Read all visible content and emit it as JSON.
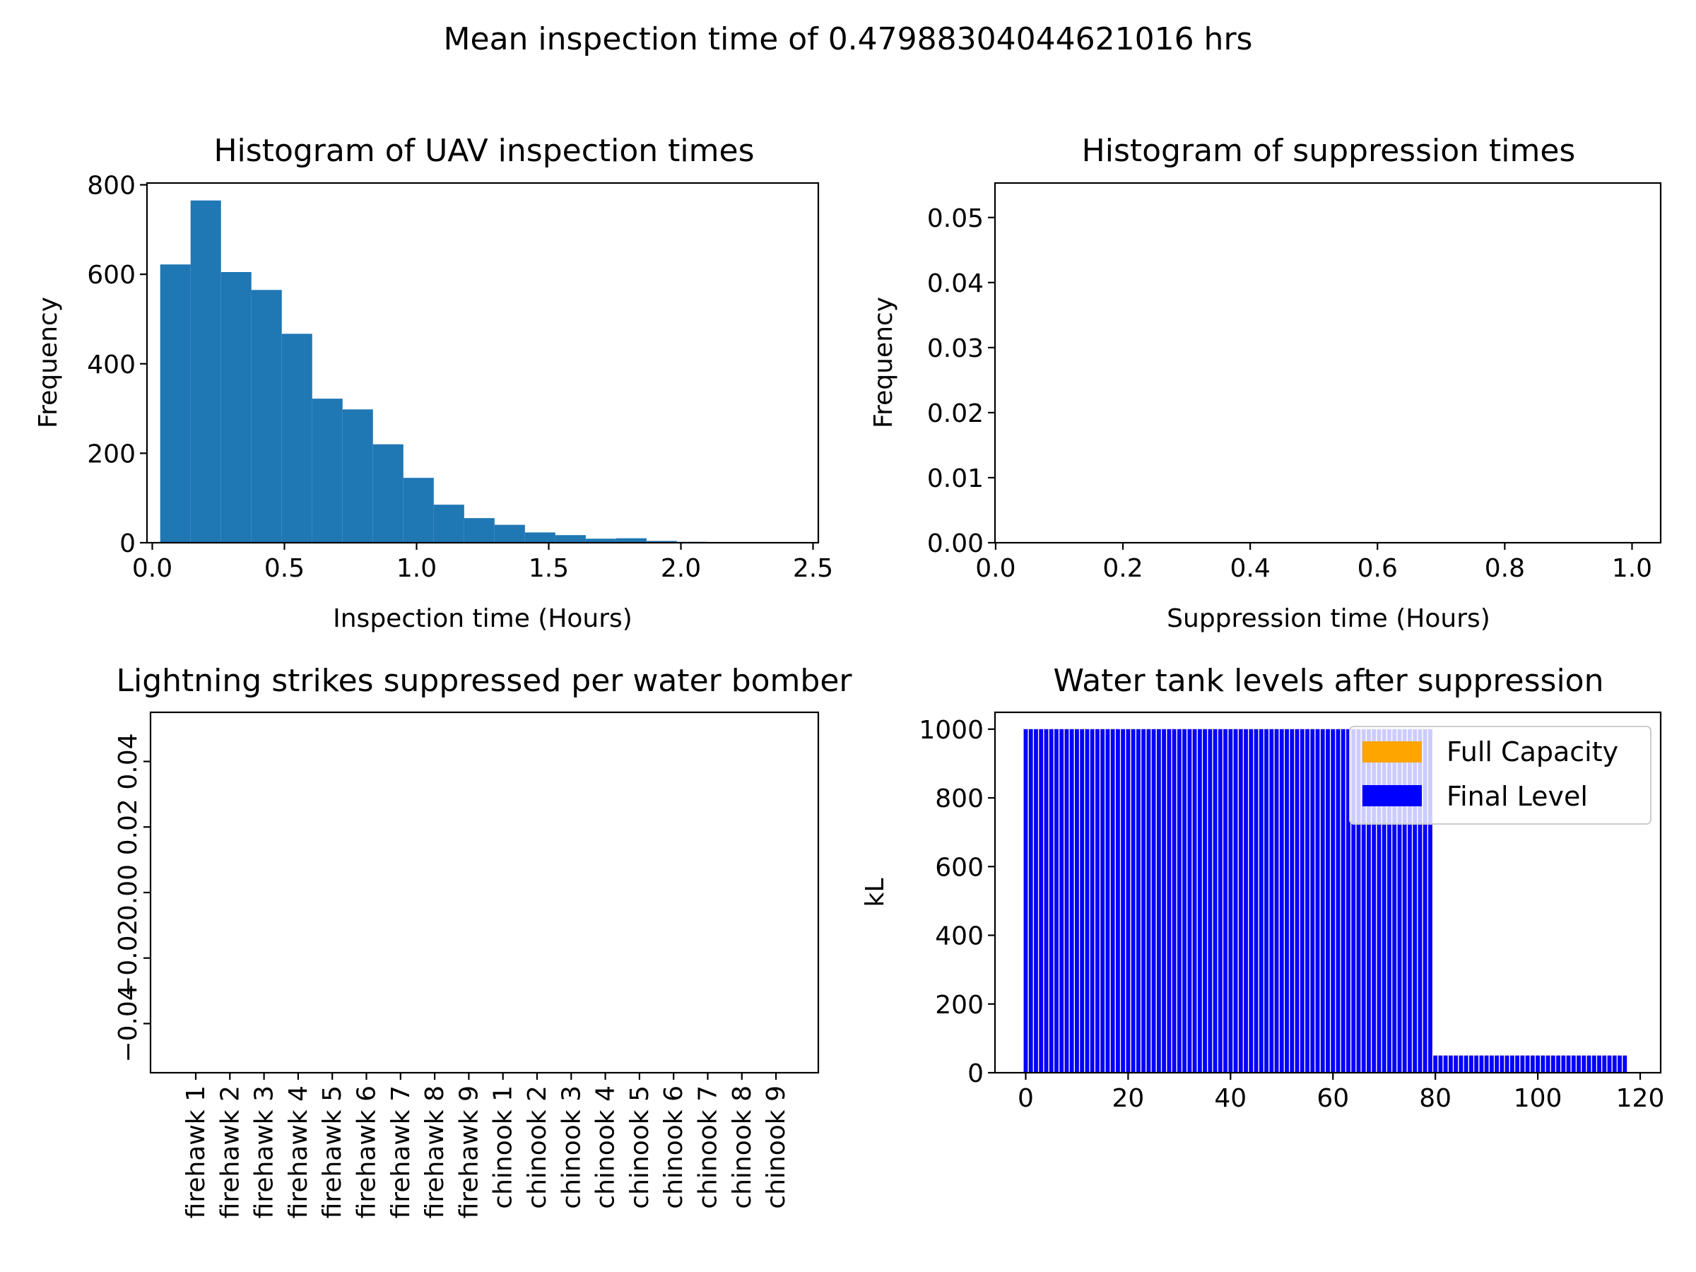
{
  "figure": {
    "suptitle": "Mean inspection time of 0.47988304044621016 hrs"
  },
  "chart_data": [
    {
      "type": "bar",
      "title": "Histogram of UAV inspection times",
      "xlabel": "Inspection time (Hours)",
      "ylabel": "Frequency",
      "xlim": [
        0,
        2.5
      ],
      "ylim": [
        0,
        800
      ],
      "xticks": [
        "0.0",
        "0.5",
        "1.0",
        "1.5",
        "2.0",
        "2.5"
      ],
      "xtick_values": [
        0,
        0.5,
        1.0,
        1.5,
        2.0,
        2.5
      ],
      "yticks": [
        "0",
        "200",
        "400",
        "600",
        "800"
      ],
      "ytick_values": [
        0,
        200,
        400,
        600,
        800
      ],
      "bin_edges": [
        0.03,
        0.145,
        0.26,
        0.375,
        0.49,
        0.605,
        0.72,
        0.835,
        0.95,
        1.065,
        1.18,
        1.295,
        1.41,
        1.525,
        1.64,
        1.755,
        1.87,
        1.985,
        2.1,
        2.215,
        2.33
      ],
      "values": [
        622,
        765,
        605,
        565,
        467,
        322,
        298,
        220,
        145,
        85,
        55,
        40,
        23,
        17,
        9,
        10,
        4,
        2,
        1,
        1
      ],
      "color": "#1f77b4",
      "grid": false
    },
    {
      "type": "bar",
      "title": "Histogram of suppression times",
      "xlabel": "Suppression time (Hours)",
      "ylabel": "Frequency",
      "xlim": [
        0,
        1.0
      ],
      "ylim": [
        0,
        0.055
      ],
      "xticks": [
        "0.0",
        "0.2",
        "0.4",
        "0.6",
        "0.8",
        "1.0"
      ],
      "xtick_values": [
        0,
        0.2,
        0.4,
        0.6,
        0.8,
        1.0
      ],
      "yticks": [
        "0.00",
        "0.01",
        "0.02",
        "0.03",
        "0.04",
        "0.05"
      ],
      "ytick_values": [
        0,
        0.01,
        0.02,
        0.03,
        0.04,
        0.05
      ],
      "values": [],
      "grid": false
    },
    {
      "type": "bar",
      "title": "Lightning strikes suppressed per water bomber",
      "xlabel": "",
      "ylabel": "",
      "categories": [
        "firehawk 1",
        "firehawk 2",
        "firehawk 3",
        "firehawk 4",
        "firehawk 5",
        "firehawk 6",
        "firehawk 7",
        "firehawk 8",
        "firehawk 9",
        "chinook 1",
        "chinook 2",
        "chinook 3",
        "chinook 4",
        "chinook 5",
        "chinook 6",
        "chinook 7",
        "chinook 8",
        "chinook 9"
      ],
      "values": [
        0,
        0,
        0,
        0,
        0,
        0,
        0,
        0,
        0,
        0,
        0,
        0,
        0,
        0,
        0,
        0,
        0,
        0
      ],
      "ylim": [
        -0.055,
        0.055
      ],
      "yticks": [
        "−0.04",
        "−0.02",
        "0.00",
        "0.02",
        "0.04"
      ],
      "ytick_values": [
        -0.04,
        -0.02,
        0.0,
        0.02,
        0.04
      ],
      "grid": false
    },
    {
      "type": "bar",
      "title": "Water tank levels after suppression",
      "xlabel": "",
      "ylabel": "kL",
      "xlim": [
        -6,
        124
      ],
      "ylim": [
        0,
        1050
      ],
      "xticks": [
        "0",
        "20",
        "40",
        "60",
        "80",
        "100",
        "120"
      ],
      "xtick_values": [
        0,
        20,
        40,
        60,
        80,
        100,
        120
      ],
      "yticks": [
        "0",
        "200",
        "400",
        "600",
        "800",
        "1000"
      ],
      "ytick_values": [
        0,
        200,
        400,
        600,
        800,
        1000
      ],
      "legend": {
        "placement": "upper right",
        "entries": [
          {
            "label": "Full Capacity",
            "color": "#ffa500"
          },
          {
            "label": "Final Level",
            "color": "#0000ff"
          }
        ]
      },
      "series": [
        {
          "name": "Full Capacity",
          "color": "#ffa500",
          "segments": [
            {
              "x_from": 0,
              "x_to": 79,
              "value": 1000
            },
            {
              "x_from": 80,
              "x_to": 117,
              "value": 50
            }
          ]
        },
        {
          "name": "Final Level",
          "color": "#0000ff",
          "segments": [
            {
              "x_from": 0,
              "x_to": 79,
              "value": 1000
            },
            {
              "x_from": 80,
              "x_to": 117,
              "value": 50
            }
          ]
        }
      ],
      "grid": false
    }
  ]
}
